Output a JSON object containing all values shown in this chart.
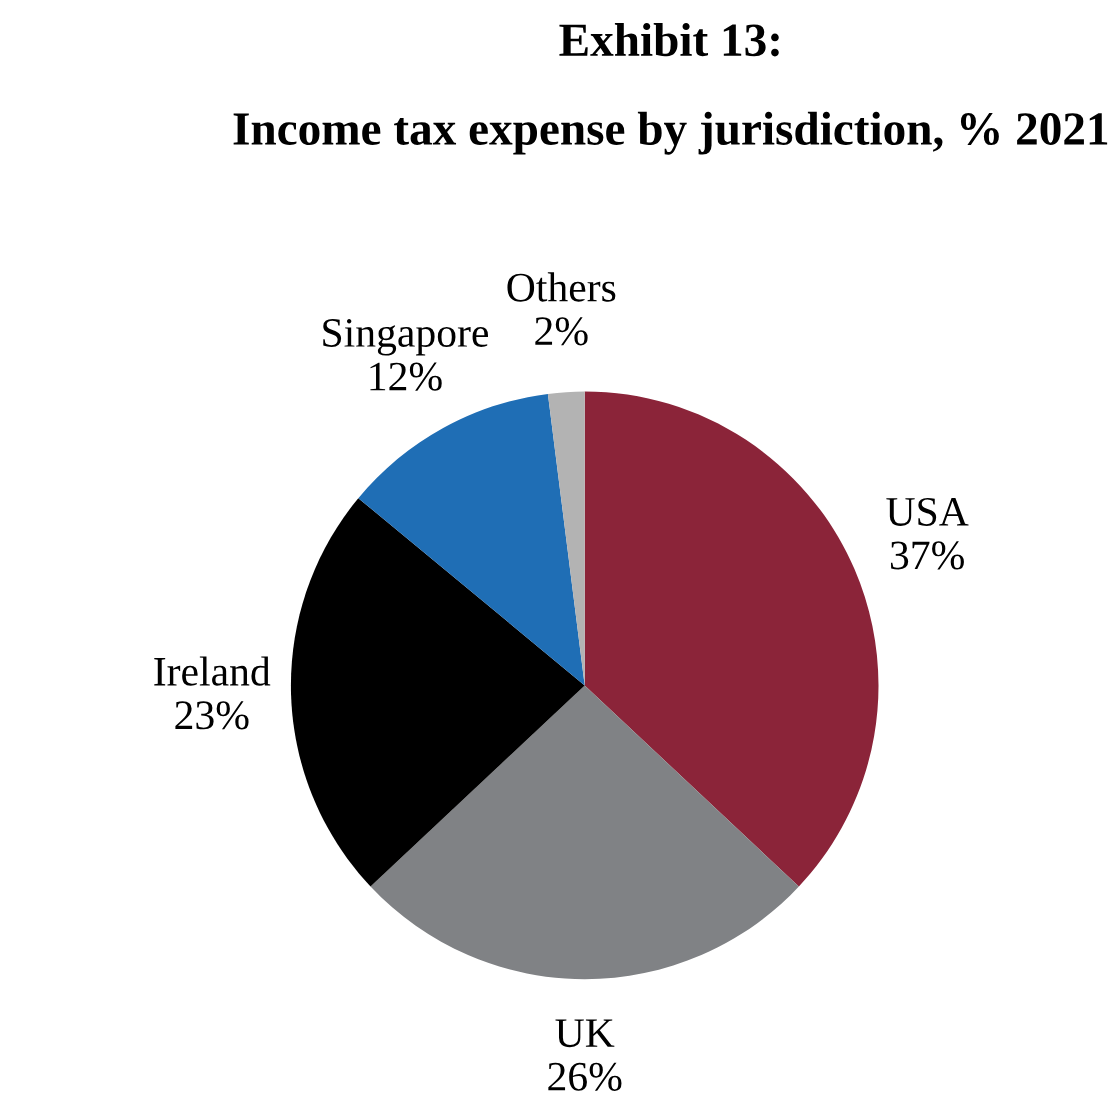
{
  "chart_data": {
    "type": "pie",
    "title": "Exhibit 13:",
    "subtitle": "Income tax expense by jurisdiction, % 2021",
    "categories": [
      "USA",
      "UK",
      "Ireland",
      "Singapore",
      "Others"
    ],
    "values": [
      37,
      26,
      23,
      12,
      2
    ],
    "colors": [
      "#8b2439",
      "#808285",
      "#000000",
      "#1f6eb5",
      "#b3b3b3"
    ],
    "value_labels": [
      "37%",
      "26%",
      "23%",
      "12%",
      "2%"
    ],
    "legend": false
  }
}
